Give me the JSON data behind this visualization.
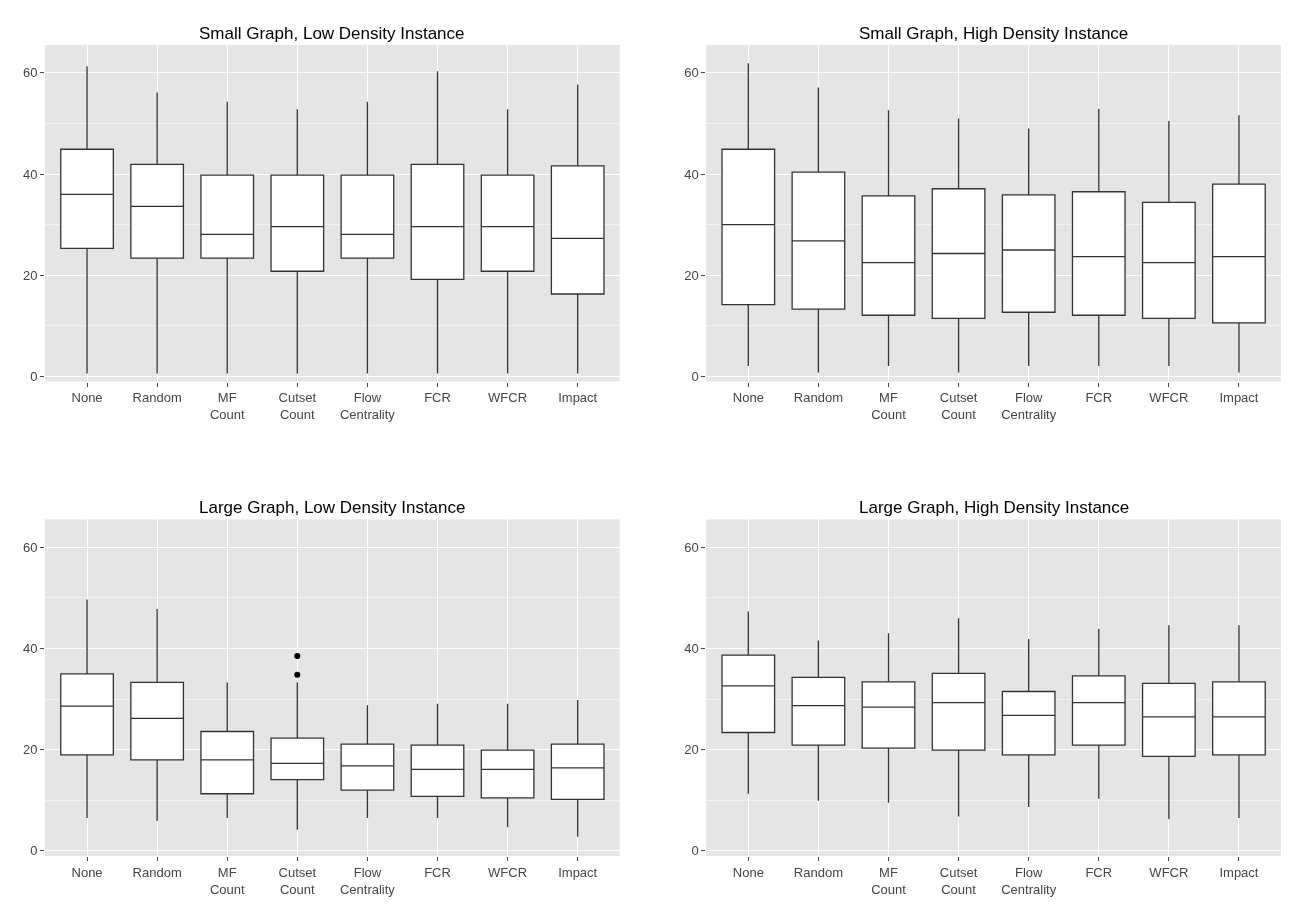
{
  "chart_data": [
    {
      "type": "box",
      "title": "Small Graph, Low Density Instance",
      "categories": [
        "None",
        "Random",
        "MF Count",
        "Cutset Count",
        "Flow Centrality",
        "FCR",
        "WFCR",
        "Impact"
      ],
      "color": "#333333",
      "ylim": [
        -1,
        65.5
      ],
      "yticks": [
        0,
        {
          "value": 10,
          "label": null
        },
        20,
        {
          "value": 30,
          "label": null
        },
        40,
        {
          "value": 50,
          "label": null
        },
        60
      ],
      "grid": true,
      "boxes": [
        {
          "low": 0.6,
          "q1": 25.3,
          "median": 36.0,
          "q3": 44.9,
          "high": 61.3
        },
        {
          "low": 0.6,
          "q1": 23.4,
          "median": 33.6,
          "q3": 41.9,
          "high": 56.1
        },
        {
          "low": 0.6,
          "q1": 23.4,
          "median": 28.1,
          "q3": 39.8,
          "high": 54.3
        },
        {
          "low": 0.6,
          "q1": 20.8,
          "median": 29.6,
          "q3": 39.8,
          "high": 52.8
        },
        {
          "low": 0.6,
          "q1": 23.4,
          "median": 28.1,
          "q3": 39.8,
          "high": 54.3
        },
        {
          "low": 0.6,
          "q1": 19.2,
          "median": 29.6,
          "q3": 41.9,
          "high": 60.3
        },
        {
          "low": 0.6,
          "q1": 20.8,
          "median": 29.6,
          "q3": 39.8,
          "high": 52.8
        },
        {
          "low": 0.6,
          "q1": 16.3,
          "median": 27.3,
          "q3": 41.6,
          "high": 57.7
        }
      ]
    },
    {
      "type": "box",
      "title": "Small Graph, High Density Instance",
      "categories": [
        "None",
        "Random",
        "MF Count",
        "Cutset Count",
        "Flow Centrality",
        "FCR",
        "WFCR",
        "Impact"
      ],
      "color": "#333333",
      "ylim": [
        -1,
        65.5
      ],
      "yticks": [
        0,
        {
          "value": 10,
          "label": null
        },
        20,
        {
          "value": 30,
          "label": null
        },
        40,
        {
          "value": 50,
          "label": null
        },
        60
      ],
      "grid": true,
      "boxes": [
        {
          "low": 2.1,
          "q1": 14.2,
          "median": 30.0,
          "q3": 44.9,
          "high": 61.9
        },
        {
          "low": 0.8,
          "q1": 13.3,
          "median": 26.8,
          "q3": 40.4,
          "high": 57.1
        },
        {
          "low": 2.1,
          "q1": 12.1,
          "median": 22.5,
          "q3": 35.7,
          "high": 52.6
        },
        {
          "low": 0.8,
          "q1": 11.5,
          "median": 24.3,
          "q3": 37.1,
          "high": 51.0
        },
        {
          "low": 2.1,
          "q1": 12.7,
          "median": 25.0,
          "q3": 35.9,
          "high": 49.0
        },
        {
          "low": 2.1,
          "q1": 12.1,
          "median": 23.7,
          "q3": 36.5,
          "high": 52.9
        },
        {
          "low": 2.1,
          "q1": 11.5,
          "median": 22.5,
          "q3": 34.4,
          "high": 50.5
        },
        {
          "low": 0.8,
          "q1": 10.6,
          "median": 23.7,
          "q3": 38.0,
          "high": 51.6
        }
      ]
    },
    {
      "type": "box",
      "title": "Large Graph, Low Density Instance",
      "categories": [
        "None",
        "Random",
        "MF Count",
        "Cutset Count",
        "Flow Centrality",
        "FCR",
        "WFCR",
        "Impact"
      ],
      "color": "#333333",
      "ylim": [
        -1,
        65.5
      ],
      "yticks": [
        0,
        {
          "value": 10,
          "label": null
        },
        20,
        {
          "value": 30,
          "label": null
        },
        40,
        {
          "value": 50,
          "label": null
        },
        60
      ],
      "grid": true,
      "boxes": [
        {
          "low": 6.5,
          "q1": 19.0,
          "median": 28.6,
          "q3": 35.0,
          "high": 49.7
        },
        {
          "low": 5.9,
          "q1": 18.0,
          "median": 26.2,
          "q3": 33.3,
          "high": 47.8
        },
        {
          "low": 6.5,
          "q1": 11.3,
          "median": 18.0,
          "q3": 23.6,
          "high": 33.3
        },
        {
          "low": 4.2,
          "q1": 14.1,
          "median": 17.3,
          "q3": 22.3,
          "high": 33.3,
          "outliers": [
            34.8,
            38.5
          ]
        },
        {
          "low": 6.5,
          "q1": 12.0,
          "median": 16.8,
          "q3": 21.1,
          "high": 28.8
        },
        {
          "low": 6.5,
          "q1": 10.8,
          "median": 16.1,
          "q3": 20.9,
          "high": 29.1
        },
        {
          "low": 4.7,
          "q1": 10.5,
          "median": 16.1,
          "q3": 19.9,
          "high": 29.1
        },
        {
          "low": 2.8,
          "q1": 10.2,
          "median": 16.4,
          "q3": 21.1,
          "high": 29.8
        }
      ]
    },
    {
      "type": "box",
      "title": "Large Graph, High Density Instance",
      "categories": [
        "None",
        "Random",
        "MF Count",
        "Cutset Count",
        "Flow Centrality",
        "FCR",
        "WFCR",
        "Impact"
      ],
      "color": "#333333",
      "ylim": [
        -1,
        65.5
      ],
      "yticks": [
        0,
        {
          "value": 10,
          "label": null
        },
        20,
        {
          "value": 30,
          "label": null
        },
        40,
        {
          "value": 50,
          "label": null
        },
        60
      ],
      "grid": true,
      "boxes": [
        {
          "low": 11.3,
          "q1": 23.4,
          "median": 32.6,
          "q3": 38.7,
          "high": 47.3
        },
        {
          "low": 9.9,
          "q1": 20.9,
          "median": 28.7,
          "q3": 34.3,
          "high": 41.6
        },
        {
          "low": 9.5,
          "q1": 20.3,
          "median": 28.4,
          "q3": 33.4,
          "high": 43.0
        },
        {
          "low": 6.8,
          "q1": 19.9,
          "median": 29.3,
          "q3": 35.1,
          "high": 46.0
        },
        {
          "low": 8.7,
          "q1": 19.0,
          "median": 26.8,
          "q3": 31.5,
          "high": 41.9
        },
        {
          "low": 10.3,
          "q1": 20.9,
          "median": 29.3,
          "q3": 34.6,
          "high": 43.9
        },
        {
          "low": 6.3,
          "q1": 18.7,
          "median": 26.5,
          "q3": 33.1,
          "high": 44.6
        },
        {
          "low": 6.5,
          "q1": 19.0,
          "median": 26.5,
          "q3": 33.4,
          "high": 44.6
        }
      ]
    }
  ]
}
